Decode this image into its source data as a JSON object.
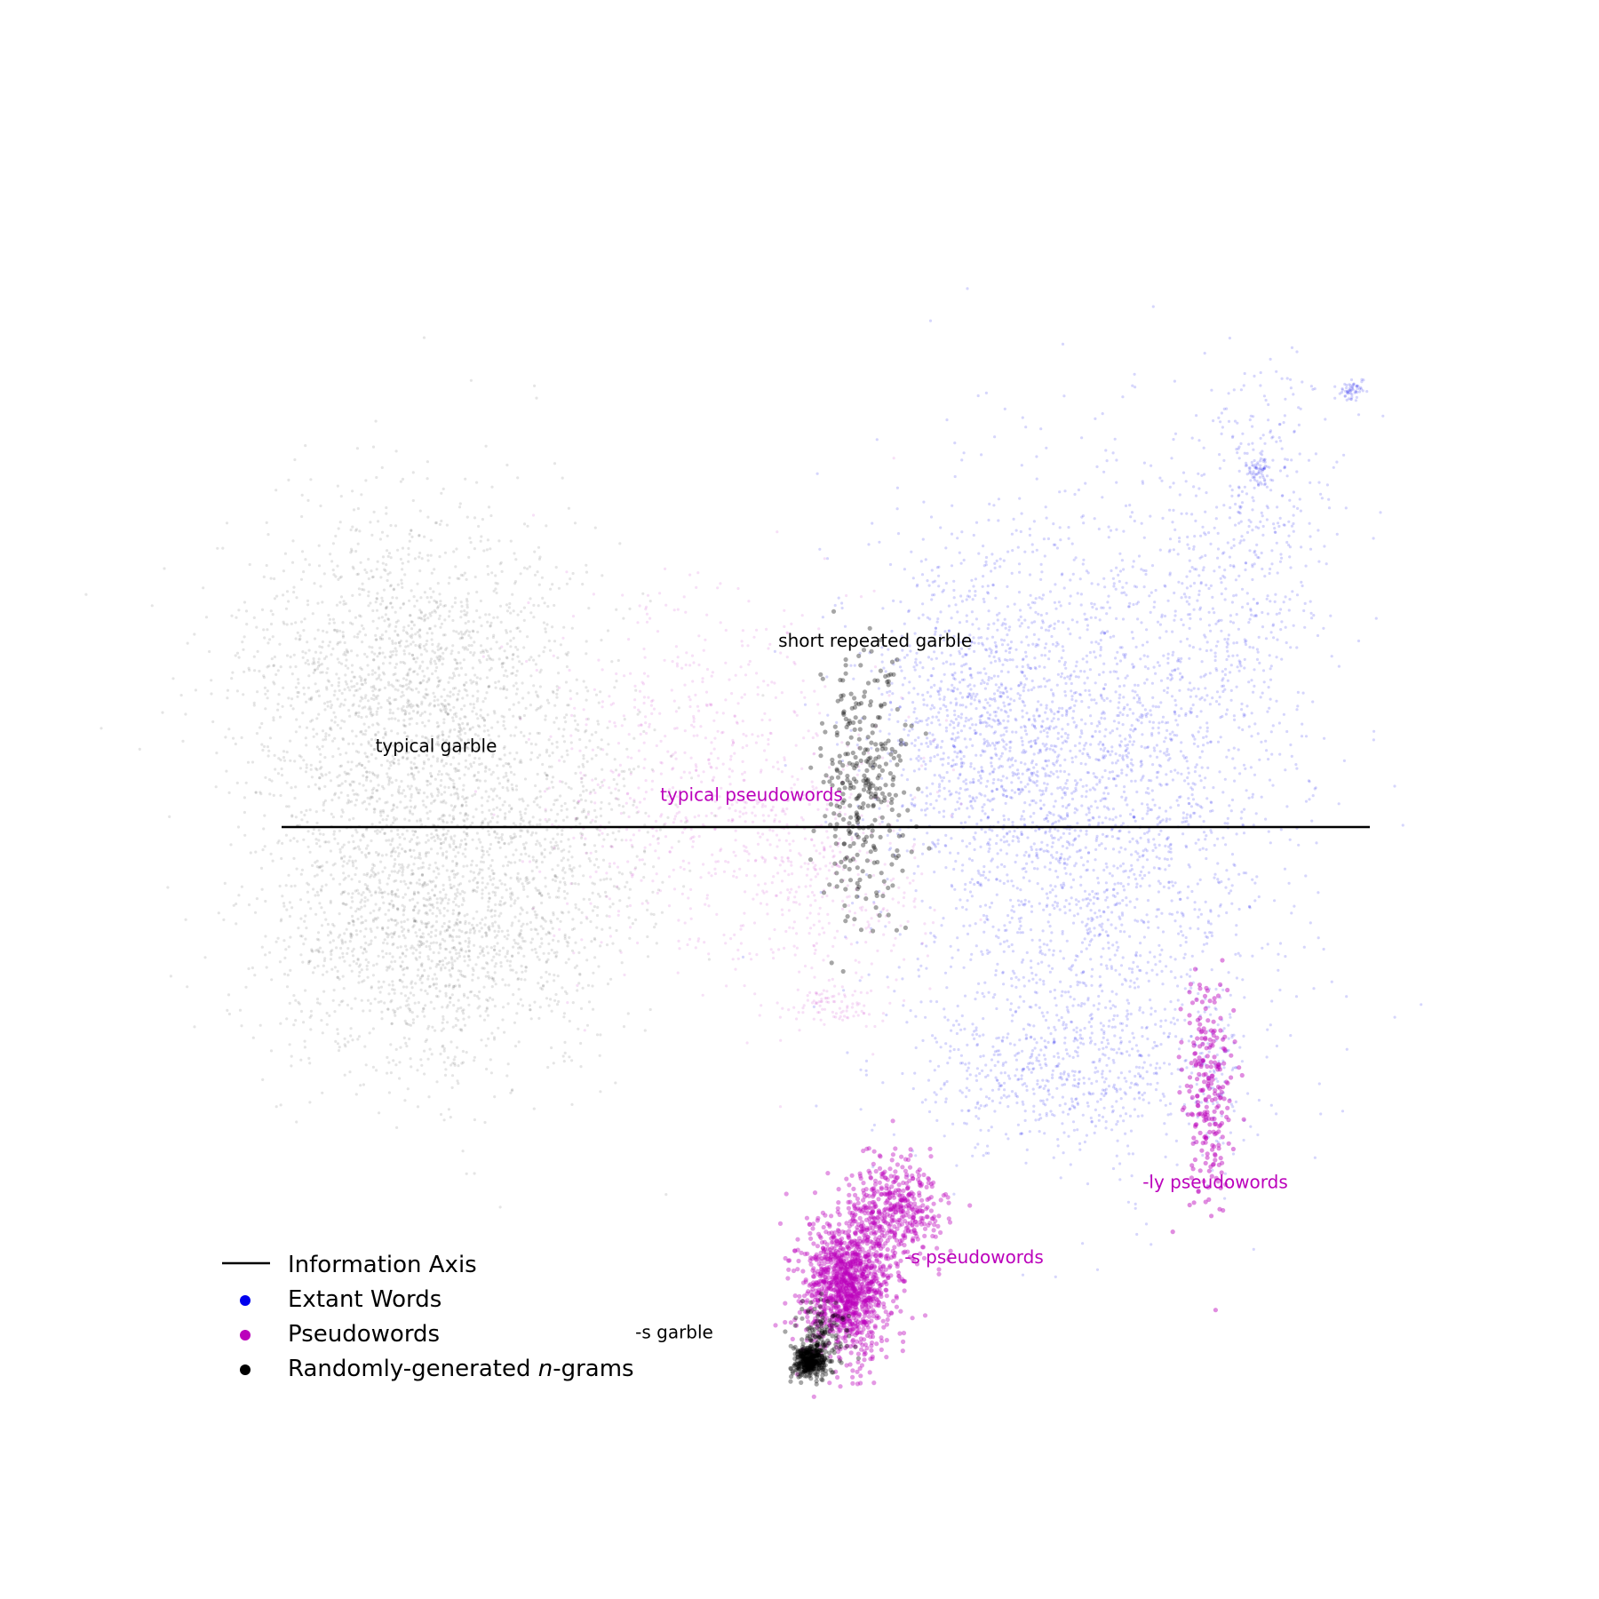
{
  "chart_data": {
    "type": "scatter",
    "title": "",
    "xlabel": "",
    "ylabel": "",
    "axes_visible": false,
    "grid": false,
    "legend_placement": "lower-left",
    "colors": {
      "extant": "#0000ee",
      "pseudo": "#bb00bb",
      "random": "#000000",
      "axis": "#000000"
    },
    "information_axis": {
      "y": 0
    },
    "legend": [
      {
        "label": "Information Axis",
        "kind": "line",
        "color": "#000000"
      },
      {
        "label": "Extant Words",
        "kind": "dot",
        "color": "#0000ee"
      },
      {
        "label": "Pseudowords",
        "kind": "dot",
        "color": "#bb00bb"
      },
      {
        "label_prefix": "Randomly-generated ",
        "label_italic": "n",
        "label_suffix": "-grams",
        "kind": "dot",
        "color": "#000000"
      }
    ],
    "annotations": [
      {
        "text": "typical garble",
        "series": "random",
        "x": -5.5,
        "y": 1.0
      },
      {
        "text": "short repeated garble",
        "series": "random",
        "x": 1.6,
        "y": 2.4
      },
      {
        "text": "typical pseudowords",
        "series": "pseudo",
        "x": -0.4,
        "y": 0.35
      },
      {
        "text": "-ly pseudowords",
        "series": "pseudo",
        "x": 7.1,
        "y": -4.8
      },
      {
        "text": "-s pseudowords",
        "series": "pseudo",
        "x": 3.2,
        "y": -5.8
      },
      {
        "text": "-s garble",
        "series": "random",
        "x": -1.65,
        "y": -6.8
      }
    ],
    "series": [
      {
        "name": "Extant Words",
        "color": "#0000ee",
        "point_opacity": 0.16,
        "clusters": [
          {
            "cx": 5.0,
            "cy": 0.2,
            "sx": 1.6,
            "sy": 2.0,
            "n": 2600
          },
          {
            "cx": 3.2,
            "cy": 1.6,
            "sx": 0.8,
            "sy": 0.9,
            "n": 600
          },
          {
            "cx": 4.6,
            "cy": -3.3,
            "sx": 1.2,
            "sy": 0.5,
            "n": 500
          },
          {
            "cx": 7.0,
            "cy": 2.5,
            "sx": 0.8,
            "sy": 1.2,
            "n": 350
          },
          {
            "cx": 8.0,
            "cy": 4.6,
            "sx": 0.6,
            "sy": 0.9,
            "n": 220
          },
          {
            "cx": 7.8,
            "cy": 4.75,
            "sx": 0.1,
            "sy": 0.12,
            "n": 70
          },
          {
            "cx": 9.3,
            "cy": 5.8,
            "sx": 0.12,
            "sy": 0.07,
            "n": 60
          },
          {
            "cx": 7.1,
            "cy": -3.2,
            "sx": 0.22,
            "sy": 0.55,
            "n": 90
          }
        ]
      },
      {
        "name": "Pseudowords",
        "color": "#bb00bb",
        "point_opacity": 0.12,
        "clusters": [
          {
            "cx": -1.2,
            "cy": 0.6,
            "sx": 1.2,
            "sy": 1.3,
            "n": 700
          },
          {
            "cx": 0.9,
            "cy": -0.8,
            "sx": 0.8,
            "sy": 0.8,
            "n": 300
          },
          {
            "cx": 1.0,
            "cy": -2.4,
            "sx": 0.4,
            "sy": 0.15,
            "n": 80
          }
        ]
      },
      {
        "name": "-ly pseudowords",
        "color": "#bb00bb",
        "point_opacity": 0.45,
        "clusters": [
          {
            "cx": 7.0,
            "cy": -3.5,
            "sx": 0.2,
            "sy": 0.8,
            "n": 240
          }
        ]
      },
      {
        "name": "-s pseudowords",
        "color": "#bb00bb",
        "point_opacity": 0.4,
        "clusters": [
          {
            "cx": 1.15,
            "cy": -6.1,
            "sx": 0.35,
            "sy": 0.45,
            "n": 1200
          },
          {
            "cx": 1.9,
            "cy": -5.1,
            "sx": 0.4,
            "sy": 0.35,
            "n": 450
          }
        ]
      },
      {
        "name": "Randomly-generated n-grams",
        "color": "#000000",
        "point_opacity": 0.1,
        "clusters": [
          {
            "cx": -5.9,
            "cy": 1.8,
            "sx": 1.4,
            "sy": 1.2,
            "n": 2000
          },
          {
            "cx": -5.6,
            "cy": -1.3,
            "sx": 1.3,
            "sy": 1.0,
            "n": 1800
          },
          {
            "cx": -3.3,
            "cy": 0.0,
            "sx": 0.8,
            "sy": 1.0,
            "n": 350
          }
        ]
      },
      {
        "name": "short repeated garble",
        "color": "#000000",
        "point_opacity": 0.35,
        "clusters": [
          {
            "cx": 1.4,
            "cy": 0.6,
            "sx": 0.35,
            "sy": 0.9,
            "n": 320
          }
        ]
      },
      {
        "name": "-s garble",
        "color": "#000000",
        "point_opacity": 0.35,
        "clusters": [
          {
            "cx": 0.55,
            "cy": -7.1,
            "sx": 0.12,
            "sy": 0.1,
            "n": 380
          },
          {
            "cx": 0.7,
            "cy": -6.8,
            "sx": 0.2,
            "sy": 0.25,
            "n": 150
          }
        ]
      }
    ],
    "xlim": [
      -8.0,
      9.6
    ],
    "ylim": [
      -8.4,
      8.4
    ]
  }
}
